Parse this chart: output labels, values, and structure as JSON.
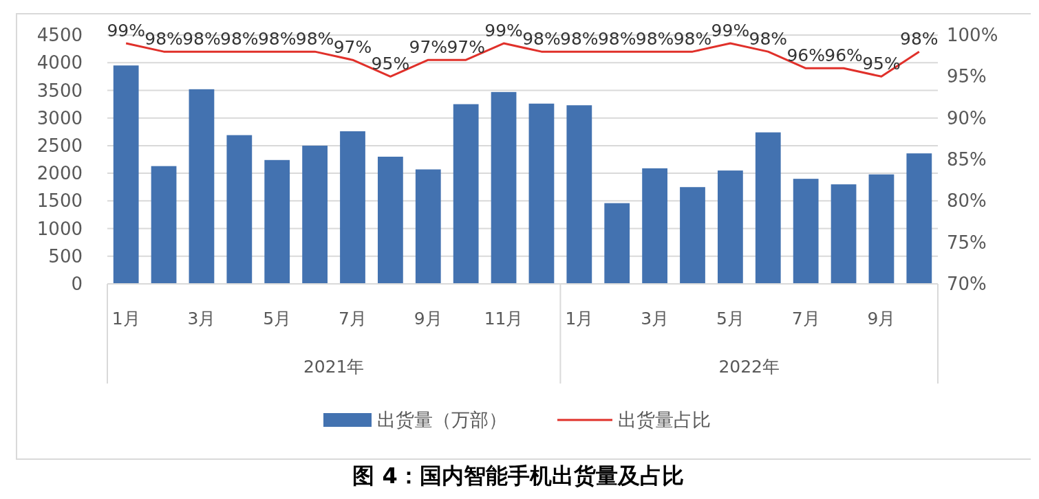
{
  "chart_data": {
    "type": "bar",
    "title": "图 4：国内智能手机出货量及占比",
    "categories": [
      "1月",
      null,
      "3月",
      null,
      "5月",
      null,
      "7月",
      null,
      "9月",
      null,
      "11月",
      null,
      "1月",
      null,
      "3月",
      null,
      "5月",
      null,
      "7月",
      null,
      "9月",
      null
    ],
    "annotations": [
      "2021年",
      "2022年"
    ],
    "series": [
      {
        "name": "出货量（万部）",
        "color": "#4372b0",
        "values": [
          3950,
          2130,
          3520,
          2690,
          2240,
          2500,
          2760,
          2300,
          2070,
          3250,
          3470,
          3260,
          3230,
          1460,
          2090,
          1750,
          2050,
          2740,
          1900,
          1800,
          1980,
          2360
        ]
      },
      {
        "name": "出货量占比",
        "type": "line",
        "axis": "y2",
        "color": "#e0302a",
        "values": [
          99,
          98,
          98,
          98,
          98,
          98,
          97,
          95,
          97,
          97,
          99,
          98,
          98,
          98,
          98,
          98,
          99,
          98,
          96,
          96,
          95,
          98
        ],
        "value_labels": [
          "99%",
          "98%",
          "98%",
          "98%",
          "98%",
          "98%",
          "97%",
          "95%",
          "97%",
          "97%",
          "99%",
          "98%",
          "98%",
          "98%",
          "98%",
          "98%",
          "99%",
          "98%",
          "96%",
          "96%",
          "95%",
          "98%"
        ]
      }
    ],
    "ylim": [
      0,
      4500
    ],
    "yticks": [
      0,
      500,
      1000,
      1500,
      2000,
      2500,
      3000,
      3500,
      4000,
      4500
    ],
    "y2lim": [
      70,
      100
    ],
    "y2ticks": [
      {
        "value": 70,
        "label": "70%"
      },
      {
        "value": 75,
        "label": "75%"
      },
      {
        "value": 80,
        "label": "80%"
      },
      {
        "value": 85,
        "label": "85%"
      },
      {
        "value": 90,
        "label": "90%"
      },
      {
        "value": 95,
        "label": "95%"
      },
      {
        "value": 100,
        "label": "100%"
      }
    ],
    "grid": "y",
    "legend": "bottom",
    "marker": "none"
  }
}
